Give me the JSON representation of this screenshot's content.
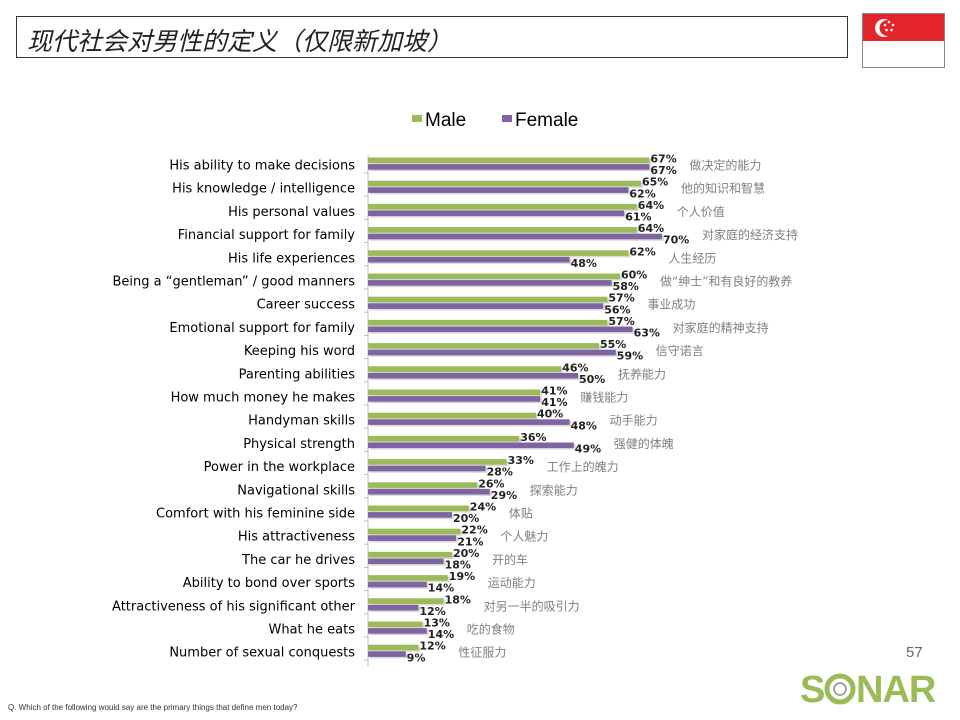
{
  "header": {
    "title": "现代社会对男性的定义（仅限新加坡）",
    "flag_icon": "singapore-flag-icon"
  },
  "colors": {
    "male": "#9bbb59",
    "female": "#8064a2",
    "chinese_label": "#7f7f7f"
  },
  "chart_data": {
    "type": "bar",
    "orientation": "horizontal",
    "legend_position": "top",
    "grid": false,
    "xlim": [
      0,
      100
    ],
    "categories": [
      "His ability to make decisions",
      "His knowledge / intelligence",
      "His personal values",
      "Financial support for family",
      "His life experiences",
      "Being a “gentleman” / good manners",
      "Career success",
      "Emotional support for family",
      "Keeping his word",
      "Parenting abilities",
      "How much money he makes",
      "Handyman skills",
      "Physical strength",
      "Power in the workplace",
      "Navigational skills",
      "Comfort with his feminine side",
      "His attractiveness",
      "The car he drives",
      "Ability to bond over sports",
      "Attractiveness of his significant other",
      "What he eats",
      "Number of sexual conquests"
    ],
    "categories_zh": [
      "做决定的能力",
      "他的知识和智慧",
      "个人价值",
      "对家庭的经济支持",
      "人生经历",
      "做“绅士”和有良好的教养",
      "事业成功",
      "对家庭的精神支持",
      "信守诺言",
      "抚养能力",
      "赚钱能力",
      "动手能力",
      "强健的体魄",
      "工作上的魄力",
      "探索能力",
      "体贴",
      "个人魅力",
      "开的车",
      "运动能力",
      "对另一半的吸引力",
      "吃的食物",
      "性征服力"
    ],
    "series": [
      {
        "name": "Male",
        "values": [
          67,
          65,
          64,
          64,
          62,
          60,
          57,
          57,
          55,
          46,
          41,
          40,
          36,
          33,
          26,
          24,
          22,
          20,
          19,
          18,
          13,
          12
        ],
        "labels": [
          "67%",
          "65%",
          "64%",
          "64%",
          "62%",
          "60%",
          "57%",
          "57%",
          "55%",
          "46%",
          "41%",
          "40%",
          "36%",
          "33%",
          "26%",
          "24%",
          "22%",
          "20%",
          "19%",
          "18%",
          "13%",
          "12%"
        ]
      },
      {
        "name": "Female",
        "values": [
          67,
          62,
          61,
          70,
          48,
          58,
          56,
          63,
          59,
          50,
          41,
          48,
          49,
          28,
          29,
          20,
          21,
          18,
          14,
          12,
          14,
          9
        ],
        "labels": [
          "67%",
          "62%",
          "61%",
          "70%",
          "48%",
          "58%",
          "56%",
          "63%",
          "59%",
          "50%",
          "41%",
          "48%",
          "49%",
          "28%",
          "29%",
          "20%",
          "21%",
          "18%",
          "14%",
          "12%",
          "14%",
          "9%"
        ]
      }
    ]
  },
  "footer": {
    "page_number": "57",
    "logo_text": "SONAR",
    "footnote": "Q. Which of the following would say are the primary things that define men today?"
  }
}
